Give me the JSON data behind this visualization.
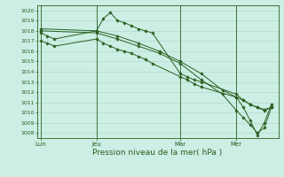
{
  "bg_color": "#cceee4",
  "grid_color": "#aad4ca",
  "line_color": "#2a6020",
  "marker_color": "#2a6020",
  "xlabel": "Pression niveau de la mer( hPa )",
  "ylim": [
    1007.5,
    1020.5
  ],
  "yticks": [
    1008,
    1009,
    1010,
    1011,
    1012,
    1013,
    1014,
    1015,
    1016,
    1017,
    1018,
    1019,
    1020
  ],
  "xtick_labels": [
    "Lun",
    "Jeu",
    "Mar",
    "Mer"
  ],
  "xtick_positions": [
    0,
    16,
    40,
    56
  ],
  "xlim": [
    -1,
    68
  ],
  "lines": [
    {
      "x": [
        0,
        2,
        4,
        16,
        18,
        20,
        22,
        24,
        26,
        28,
        30,
        32,
        40,
        42,
        44,
        46,
        56,
        58,
        60,
        62,
        64,
        66
      ],
      "y": [
        1017.8,
        1017.5,
        1017.2,
        1018.0,
        1019.2,
        1019.8,
        1019.0,
        1018.8,
        1018.5,
        1018.2,
        1018.0,
        1017.8,
        1013.8,
        1013.5,
        1013.2,
        1013.0,
        1011.8,
        1011.2,
        1010.8,
        1010.5,
        1010.3,
        1010.5
      ]
    },
    {
      "x": [
        0,
        2,
        4,
        16,
        18,
        20,
        22,
        24,
        26,
        28,
        30,
        32,
        40,
        42,
        44,
        46,
        56,
        58,
        60,
        62,
        64,
        66
      ],
      "y": [
        1017.0,
        1016.8,
        1016.5,
        1017.2,
        1016.8,
        1016.5,
        1016.2,
        1016.0,
        1015.8,
        1015.5,
        1015.2,
        1014.8,
        1013.5,
        1013.2,
        1012.8,
        1012.5,
        1011.5,
        1011.2,
        1010.8,
        1010.5,
        1010.2,
        1010.5
      ]
    },
    {
      "x": [
        0,
        16,
        22,
        28,
        34,
        40,
        46,
        52,
        56,
        58,
        60,
        62,
        64,
        66
      ],
      "y": [
        1018.0,
        1017.8,
        1017.2,
        1016.5,
        1015.8,
        1014.8,
        1013.2,
        1011.8,
        1010.2,
        1009.5,
        1008.8,
        1008.0,
        1008.5,
        1010.5
      ]
    },
    {
      "x": [
        0,
        16,
        22,
        28,
        34,
        40,
        46,
        52,
        56,
        58,
        60,
        62,
        64,
        66
      ],
      "y": [
        1018.2,
        1018.0,
        1017.5,
        1016.8,
        1016.0,
        1015.0,
        1013.8,
        1012.2,
        1011.5,
        1010.5,
        1009.2,
        1007.8,
        1009.0,
        1010.8
      ]
    }
  ],
  "vlines": [
    0,
    16,
    40,
    56
  ],
  "figsize": [
    3.2,
    2.0
  ],
  "dpi": 100
}
